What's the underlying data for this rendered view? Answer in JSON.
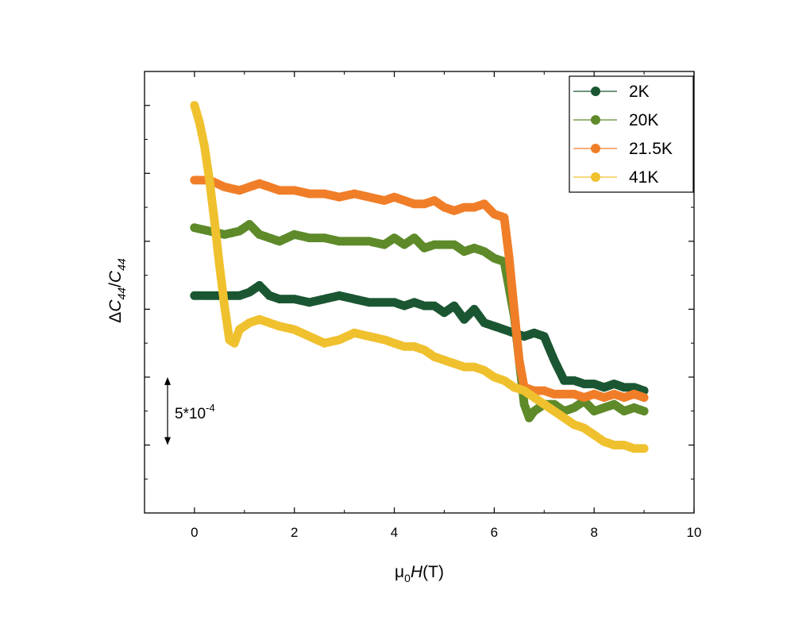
{
  "chart_data": {
    "type": "scatter",
    "title": "",
    "xlabel": {
      "main": "μ",
      "sub": "0",
      "italic": "H",
      "tail": "(T)"
    },
    "ylabel": {
      "delta": "Δ",
      "c1": "C",
      "c1sub": "44",
      "slash": "/",
      "c2": "C",
      "c2sub": "44"
    },
    "xlim": [
      -1,
      10
    ],
    "ylim": [
      0,
      13
    ],
    "xticks": [
      "0",
      "2",
      "4",
      "6",
      "8",
      "10"
    ],
    "xtick_values": [
      0,
      2,
      4,
      6,
      8,
      10
    ],
    "y_tick_labels_shown": false,
    "legend_position": "top-right",
    "annotation": {
      "base": "5*10",
      "exp": "-4",
      "span": [
        4,
        2
      ]
    },
    "series": [
      {
        "name": "2K",
        "color": "#1b5632",
        "x": [
          0,
          0.3,
          0.6,
          0.9,
          1.1,
          1.3,
          1.5,
          1.7,
          2.0,
          2.3,
          2.6,
          2.9,
          3.2,
          3.5,
          3.8,
          4.0,
          4.2,
          4.4,
          4.6,
          4.8,
          5.0,
          5.2,
          5.4,
          5.6,
          5.8,
          6.0,
          6.2,
          6.4,
          6.6,
          6.8,
          7.0,
          7.2,
          7.4,
          7.6,
          7.8,
          8.0,
          8.2,
          8.4,
          8.6,
          8.8,
          9.0
        ],
        "y": [
          6.4,
          6.4,
          6.4,
          6.4,
          6.5,
          6.7,
          6.4,
          6.3,
          6.3,
          6.2,
          6.3,
          6.4,
          6.3,
          6.2,
          6.2,
          6.2,
          6.1,
          6.2,
          6.1,
          6.1,
          5.9,
          6.1,
          5.7,
          6.0,
          5.6,
          5.5,
          5.4,
          5.3,
          5.2,
          5.3,
          5.2,
          4.5,
          3.9,
          3.9,
          3.8,
          3.8,
          3.7,
          3.8,
          3.7,
          3.7,
          3.6
        ]
      },
      {
        "name": "20K",
        "color": "#5e8a2a",
        "x": [
          0,
          0.3,
          0.6,
          0.9,
          1.1,
          1.3,
          1.5,
          1.7,
          2.0,
          2.3,
          2.6,
          2.9,
          3.2,
          3.5,
          3.8,
          4.0,
          4.2,
          4.4,
          4.6,
          4.8,
          5.0,
          5.2,
          5.4,
          5.6,
          5.8,
          6.0,
          6.2,
          6.4,
          6.5,
          6.6,
          6.7,
          6.8,
          7.0,
          7.2,
          7.4,
          7.6,
          7.8,
          8.0,
          8.2,
          8.4,
          8.6,
          8.8,
          9.0
        ],
        "y": [
          8.4,
          8.3,
          8.2,
          8.3,
          8.5,
          8.2,
          8.1,
          8.0,
          8.2,
          8.1,
          8.1,
          8.0,
          8.0,
          8.0,
          7.9,
          8.1,
          7.9,
          8.1,
          7.8,
          7.9,
          7.9,
          7.9,
          7.7,
          7.8,
          7.7,
          7.5,
          7.4,
          5.8,
          4.5,
          3.2,
          2.8,
          3.0,
          3.2,
          3.2,
          3.0,
          3.1,
          3.3,
          3.0,
          3.1,
          3.2,
          3.0,
          3.1,
          3.0
        ]
      },
      {
        "name": "21.5K",
        "color": "#f07e28",
        "x": [
          0,
          0.3,
          0.6,
          0.9,
          1.1,
          1.3,
          1.5,
          1.7,
          2.0,
          2.3,
          2.6,
          2.9,
          3.2,
          3.5,
          3.8,
          4.0,
          4.2,
          4.4,
          4.6,
          4.8,
          5.0,
          5.2,
          5.4,
          5.6,
          5.8,
          6.0,
          6.2,
          6.3,
          6.4,
          6.5,
          6.6,
          6.8,
          7.0,
          7.2,
          7.4,
          7.6,
          7.8,
          8.0,
          8.2,
          8.4,
          8.6,
          8.8,
          9.0
        ],
        "y": [
          9.8,
          9.8,
          9.6,
          9.5,
          9.6,
          9.7,
          9.6,
          9.5,
          9.5,
          9.4,
          9.4,
          9.3,
          9.4,
          9.3,
          9.2,
          9.3,
          9.2,
          9.1,
          9.1,
          9.2,
          9.0,
          8.9,
          9.0,
          9.0,
          9.1,
          8.8,
          8.7,
          7.5,
          6.0,
          4.5,
          3.7,
          3.6,
          3.6,
          3.5,
          3.5,
          3.5,
          3.4,
          3.5,
          3.4,
          3.5,
          3.4,
          3.5,
          3.4
        ]
      },
      {
        "name": "41K",
        "color": "#f0c12e",
        "x": [
          0,
          0.1,
          0.2,
          0.3,
          0.4,
          0.5,
          0.6,
          0.7,
          0.8,
          0.9,
          1.1,
          1.3,
          1.5,
          1.7,
          2.0,
          2.3,
          2.6,
          2.9,
          3.2,
          3.5,
          3.8,
          4.0,
          4.2,
          4.4,
          4.6,
          4.8,
          5.0,
          5.2,
          5.4,
          5.6,
          5.8,
          6.0,
          6.2,
          6.4,
          6.6,
          6.8,
          7.0,
          7.2,
          7.4,
          7.6,
          7.8,
          8.0,
          8.2,
          8.4,
          8.6,
          8.8,
          9.0
        ],
        "y": [
          12.0,
          11.5,
          10.8,
          9.8,
          8.6,
          7.3,
          6.1,
          5.1,
          5.0,
          5.4,
          5.6,
          5.7,
          5.6,
          5.5,
          5.4,
          5.2,
          5.0,
          5.1,
          5.3,
          5.2,
          5.1,
          5.0,
          4.9,
          4.9,
          4.8,
          4.6,
          4.5,
          4.4,
          4.3,
          4.3,
          4.2,
          4.0,
          3.9,
          3.7,
          3.6,
          3.4,
          3.2,
          3.0,
          2.8,
          2.6,
          2.5,
          2.3,
          2.1,
          2.0,
          2.0,
          1.9,
          1.9
        ]
      }
    ]
  }
}
